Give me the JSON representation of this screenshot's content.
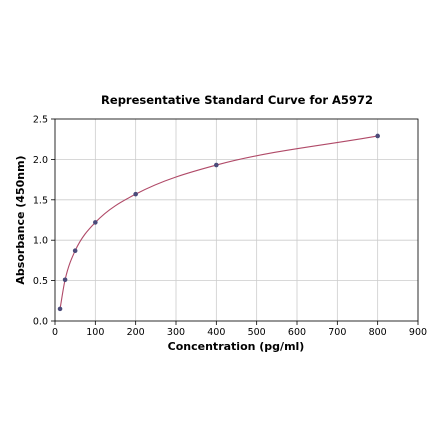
{
  "chart_data": {
    "type": "scatter",
    "title": "Representative Standard Curve for A5972",
    "xlabel": "Concentration (pg/ml)",
    "ylabel": "Absorbance (450nm)",
    "xlim": [
      0,
      900
    ],
    "ylim": [
      0,
      2.5
    ],
    "xticks": [
      "0",
      "100",
      "200",
      "300",
      "400",
      "500",
      "600",
      "700",
      "800",
      "900"
    ],
    "yticks": [
      "0.0",
      "0.5",
      "1.0",
      "1.5",
      "2.0",
      "2.5"
    ],
    "grid": true,
    "fit_curve": true,
    "colors": {
      "points": "#4b4b7a",
      "curve": "#b04a68"
    },
    "series": [
      {
        "x": [
          12.5,
          25,
          50,
          100,
          200,
          400,
          800
        ],
        "y": [
          0.15,
          0.51,
          0.87,
          1.22,
          1.57,
          1.93,
          2.29
        ]
      }
    ]
  }
}
